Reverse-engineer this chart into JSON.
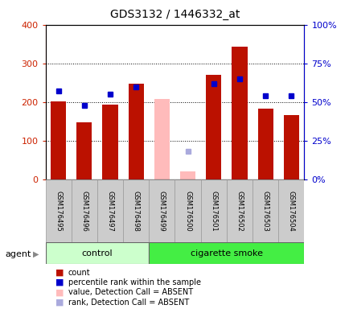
{
  "title": "GDS3132 / 1446332_at",
  "samples": [
    "GSM176495",
    "GSM176496",
    "GSM176497",
    "GSM176498",
    "GSM176499",
    "GSM176500",
    "GSM176501",
    "GSM176502",
    "GSM176503",
    "GSM176504"
  ],
  "counts": [
    202,
    147,
    193,
    248,
    null,
    null,
    271,
    344,
    183,
    167
  ],
  "absent_values": [
    null,
    null,
    null,
    null,
    208,
    20,
    null,
    null,
    null,
    null
  ],
  "percentile_ranks": [
    57,
    48,
    55,
    60,
    null,
    null,
    62,
    65,
    54,
    54
  ],
  "absent_ranks": [
    null,
    null,
    null,
    null,
    null,
    18,
    null,
    null,
    null,
    null
  ],
  "control_group": [
    0,
    1,
    2,
    3
  ],
  "smoke_group": [
    4,
    5,
    6,
    7,
    8,
    9
  ],
  "group_label_control": "control",
  "group_label_smoke": "cigarette smoke",
  "agent_label": "agent",
  "ylim_left": [
    0,
    400
  ],
  "ylim_right": [
    0,
    100
  ],
  "left_ticks": [
    0,
    100,
    200,
    300,
    400
  ],
  "right_ticks": [
    0,
    25,
    50,
    75,
    100
  ],
  "bar_color_present": "#bb1100",
  "bar_color_absent": "#ffbbbb",
  "dot_color_present": "#0000cc",
  "dot_color_absent": "#aaaadd",
  "control_bg": "#ccffcc",
  "smoke_bg": "#44ee44",
  "xlabel_color": "#cc2200",
  "ylabel_right_color": "#0000cc",
  "label_bg": "#cccccc",
  "legend_items": [
    "count",
    "percentile rank within the sample",
    "value, Detection Call = ABSENT",
    "rank, Detection Call = ABSENT"
  ],
  "legend_colors": [
    "#bb1100",
    "#0000cc",
    "#ffbbbb",
    "#aaaadd"
  ]
}
